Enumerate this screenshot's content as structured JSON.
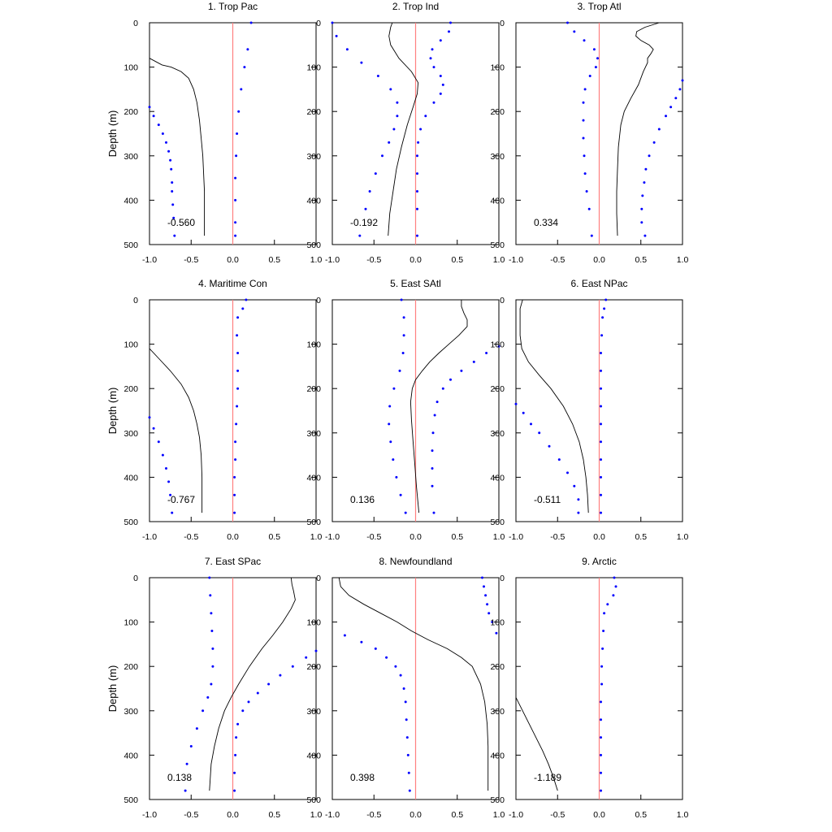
{
  "figure": {
    "y_axis_label": "Depth (m)",
    "ref_color": "#ff8080",
    "dot_color": "#0000ff",
    "line_color": "#000000"
  },
  "chart_data": [
    {
      "type": "line",
      "title": "1. Trop Pac",
      "annotation": "-0.560",
      "xlim": [
        -1,
        1
      ],
      "ylim": [
        500,
        0
      ],
      "xticks": [
        "-1.0",
        "-0.5",
        "0.0",
        "0.5",
        "1.0"
      ],
      "yticks": [
        "0",
        "100",
        "200",
        "300",
        "400",
        "500"
      ],
      "series": [
        {
          "style": "solid",
          "depth": [
            80,
            95,
            100,
            110,
            125,
            150,
            180,
            220,
            260,
            300,
            340,
            380,
            420,
            460,
            480
          ],
          "values": [
            -1.0,
            -0.85,
            -0.74,
            -0.62,
            -0.53,
            -0.47,
            -0.43,
            -0.4,
            -0.38,
            -0.36,
            -0.35,
            -0.34,
            -0.34,
            -0.34,
            -0.34
          ]
        },
        {
          "style": "dotted",
          "depth": [
            0,
            60,
            100,
            150,
            200,
            250,
            300,
            350,
            400,
            450,
            480
          ],
          "values": [
            0.22,
            0.18,
            0.14,
            0.1,
            0.07,
            0.05,
            0.04,
            0.03,
            0.03,
            0.03,
            0.03
          ]
        },
        {
          "style": "dotted",
          "depth": [
            190,
            210,
            230,
            250,
            270,
            290,
            310,
            330,
            360,
            380,
            410,
            440,
            480
          ],
          "values": [
            -1.0,
            -0.95,
            -0.89,
            -0.84,
            -0.8,
            -0.77,
            -0.75,
            -0.74,
            -0.73,
            -0.73,
            -0.72,
            -0.71,
            -0.7
          ]
        }
      ]
    },
    {
      "type": "line",
      "title": "2. Trop Ind",
      "annotation": "-0.192",
      "xlim": [
        -1,
        1
      ],
      "ylim": [
        500,
        0
      ],
      "xticks": [
        "-1.0",
        "-0.5",
        "0.0",
        "0.5",
        "1.0"
      ],
      "yticks": [
        "0",
        "100",
        "200",
        "300",
        "400",
        "500"
      ],
      "series": [
        {
          "style": "solid",
          "depth": [
            0,
            10,
            30,
            50,
            80,
            110,
            135,
            160,
            190,
            230,
            280,
            330,
            380,
            430,
            480
          ],
          "values": [
            -0.28,
            -0.3,
            -0.32,
            -0.3,
            -0.2,
            -0.05,
            0.03,
            0.02,
            -0.03,
            -0.1,
            -0.17,
            -0.23,
            -0.27,
            -0.31,
            -0.33
          ]
        },
        {
          "style": "dotted",
          "depth": [
            0,
            30,
            60,
            90,
            120,
            150,
            180,
            210,
            240,
            270,
            300,
            340,
            380,
            420,
            480
          ],
          "values": [
            -1.0,
            -0.95,
            -0.82,
            -0.65,
            -0.45,
            -0.3,
            -0.22,
            -0.22,
            -0.26,
            -0.32,
            -0.4,
            -0.48,
            -0.55,
            -0.6,
            -0.67
          ]
        },
        {
          "style": "dotted",
          "depth": [
            0,
            20,
            40,
            60,
            80,
            100,
            120,
            140,
            160,
            180,
            210,
            240,
            270,
            300,
            340,
            380,
            420,
            480
          ],
          "values": [
            0.42,
            0.4,
            0.3,
            0.2,
            0.18,
            0.22,
            0.3,
            0.33,
            0.3,
            0.22,
            0.12,
            0.06,
            0.03,
            0.02,
            0.02,
            0.02,
            0.02,
            0.02
          ]
        }
      ]
    },
    {
      "type": "line",
      "title": "3. Trop Atl",
      "annotation": "0.334",
      "xlim": [
        -1,
        1
      ],
      "ylim": [
        500,
        0
      ],
      "xticks": [
        "-1.0",
        "-0.5",
        "0.0",
        "0.5",
        "1.0"
      ],
      "yticks": [
        "0",
        "100",
        "200",
        "300",
        "400",
        "500"
      ],
      "series": [
        {
          "style": "solid",
          "depth": [
            0,
            10,
            20,
            30,
            40,
            50,
            60,
            70,
            80,
            90,
            110,
            140,
            170,
            200,
            230,
            280,
            330,
            380,
            430,
            480
          ],
          "values": [
            0.72,
            0.55,
            0.45,
            0.44,
            0.5,
            0.6,
            0.65,
            0.62,
            0.58,
            0.58,
            0.53,
            0.47,
            0.38,
            0.3,
            0.26,
            0.23,
            0.22,
            0.21,
            0.21,
            0.22
          ]
        },
        {
          "style": "dotted",
          "depth": [
            0,
            20,
            40,
            60,
            80,
            100,
            120,
            150,
            180,
            220,
            260,
            300,
            340,
            380,
            420,
            480
          ],
          "values": [
            -0.38,
            -0.3,
            -0.18,
            -0.06,
            -0.02,
            -0.04,
            -0.11,
            -0.17,
            -0.19,
            -0.19,
            -0.19,
            -0.18,
            -0.17,
            -0.15,
            -0.12,
            -0.09
          ]
        },
        {
          "style": "dotted",
          "depth": [
            130,
            150,
            170,
            190,
            210,
            240,
            270,
            300,
            330,
            360,
            390,
            420,
            450,
            480
          ],
          "values": [
            1.0,
            0.97,
            0.92,
            0.86,
            0.8,
            0.72,
            0.66,
            0.6,
            0.56,
            0.54,
            0.52,
            0.51,
            0.51,
            0.55
          ]
        }
      ]
    },
    {
      "type": "line",
      "title": "4. Maritime Con",
      "annotation": "-0.767",
      "xlim": [
        -1,
        1
      ],
      "ylim": [
        500,
        0
      ],
      "xticks": [
        "-1.0",
        "-0.5",
        "0.0",
        "0.5",
        "1.0"
      ],
      "yticks": [
        "0",
        "100",
        "200",
        "300",
        "400",
        "500"
      ],
      "series": [
        {
          "style": "solid",
          "depth": [
            110,
            130,
            160,
            190,
            220,
            250,
            280,
            310,
            350,
            400,
            450,
            480
          ],
          "values": [
            -1.0,
            -0.9,
            -0.75,
            -0.62,
            -0.53,
            -0.47,
            -0.43,
            -0.4,
            -0.38,
            -0.37,
            -0.37,
            -0.37
          ]
        },
        {
          "style": "dotted",
          "depth": [
            0,
            20,
            40,
            80,
            120,
            160,
            200,
            240,
            280,
            320,
            360,
            400,
            440,
            480
          ],
          "values": [
            0.16,
            0.12,
            0.06,
            0.05,
            0.06,
            0.06,
            0.06,
            0.05,
            0.04,
            0.03,
            0.03,
            0.02,
            0.02,
            0.02
          ]
        },
        {
          "style": "dotted",
          "depth": [
            265,
            290,
            320,
            350,
            380,
            410,
            440,
            480
          ],
          "values": [
            -1.0,
            -0.95,
            -0.89,
            -0.84,
            -0.8,
            -0.77,
            -0.75,
            -0.73
          ]
        }
      ]
    },
    {
      "type": "line",
      "title": "5. East SAtl",
      "annotation": "0.136",
      "xlim": [
        -1,
        1
      ],
      "ylim": [
        500,
        0
      ],
      "xticks": [
        "-1.0",
        "-0.5",
        "0.0",
        "0.5",
        "1.0"
      ],
      "yticks": [
        "0",
        "100",
        "200",
        "300",
        "400",
        "500"
      ],
      "series": [
        {
          "style": "solid",
          "depth": [
            0,
            15,
            30,
            45,
            60,
            80,
            100,
            120,
            140,
            160,
            180,
            200,
            230,
            270,
            320,
            370,
            420,
            480
          ],
          "values": [
            0.55,
            0.55,
            0.58,
            0.62,
            0.62,
            0.52,
            0.4,
            0.28,
            0.17,
            0.08,
            0.0,
            -0.04,
            -0.06,
            -0.05,
            -0.03,
            -0.01,
            0.01,
            0.04
          ]
        },
        {
          "style": "dotted",
          "depth": [
            0,
            40,
            80,
            120,
            160,
            200,
            240,
            280,
            320,
            360,
            400,
            440,
            480
          ],
          "values": [
            -0.17,
            -0.14,
            -0.14,
            -0.15,
            -0.19,
            -0.26,
            -0.31,
            -0.32,
            -0.3,
            -0.27,
            -0.23,
            -0.18,
            -0.12
          ]
        },
        {
          "style": "dotted",
          "depth": [
            105,
            120,
            140,
            160,
            180,
            200,
            230,
            260,
            300,
            340,
            380,
            420,
            480
          ],
          "values": [
            1.0,
            0.85,
            0.7,
            0.55,
            0.42,
            0.33,
            0.26,
            0.23,
            0.21,
            0.2,
            0.2,
            0.2,
            0.22
          ]
        }
      ]
    },
    {
      "type": "line",
      "title": "6. East NPac",
      "annotation": "-0.511",
      "xlim": [
        -1,
        1
      ],
      "ylim": [
        500,
        0
      ],
      "xticks": [
        "-1.0",
        "-0.5",
        "0.0",
        "0.5",
        "1.0"
      ],
      "yticks": [
        "0",
        "100",
        "200",
        "300",
        "400",
        "500"
      ],
      "series": [
        {
          "style": "solid",
          "depth": [
            0,
            20,
            50,
            80,
            110,
            140,
            170,
            200,
            240,
            280,
            320,
            360,
            400,
            440,
            480
          ],
          "values": [
            -0.92,
            -0.95,
            -0.95,
            -0.95,
            -0.93,
            -0.85,
            -0.72,
            -0.58,
            -0.43,
            -0.32,
            -0.24,
            -0.19,
            -0.16,
            -0.14,
            -0.13
          ]
        },
        {
          "style": "dotted",
          "depth": [
            0,
            20,
            40,
            80,
            120,
            160,
            200,
            240,
            280,
            320,
            360,
            400,
            440,
            480
          ],
          "values": [
            0.08,
            0.06,
            0.04,
            0.03,
            0.02,
            0.02,
            0.02,
            0.02,
            0.02,
            0.02,
            0.02,
            0.02,
            0.02,
            0.02
          ]
        },
        {
          "style": "dotted",
          "depth": [
            235,
            255,
            280,
            300,
            330,
            360,
            390,
            420,
            450,
            480
          ],
          "values": [
            -1.0,
            -0.91,
            -0.82,
            -0.72,
            -0.6,
            -0.48,
            -0.38,
            -0.3,
            -0.25,
            -0.25
          ]
        }
      ]
    },
    {
      "type": "line",
      "title": "7. East SPac",
      "annotation": "0.138",
      "xlim": [
        -1,
        1
      ],
      "ylim": [
        500,
        0
      ],
      "xticks": [
        "-1.0",
        "-0.5",
        "0.0",
        "0.5",
        "1.0"
      ],
      "yticks": [
        "0",
        "100",
        "200",
        "300",
        "400",
        "500"
      ],
      "series": [
        {
          "style": "solid",
          "depth": [
            0,
            15,
            30,
            50,
            70,
            100,
            130,
            160,
            200,
            240,
            270,
            300,
            340,
            380,
            420,
            480
          ],
          "values": [
            0.7,
            0.71,
            0.73,
            0.75,
            0.7,
            0.6,
            0.48,
            0.35,
            0.2,
            0.07,
            -0.02,
            -0.1,
            -0.17,
            -0.22,
            -0.26,
            -0.28
          ]
        },
        {
          "style": "dotted",
          "depth": [
            0,
            40,
            80,
            120,
            160,
            200,
            240,
            270,
            300,
            340,
            380,
            420,
            480
          ],
          "values": [
            -0.28,
            -0.27,
            -0.26,
            -0.25,
            -0.24,
            -0.24,
            -0.26,
            -0.3,
            -0.36,
            -0.43,
            -0.5,
            -0.55,
            -0.57
          ]
        },
        {
          "style": "dotted",
          "depth": [
            165,
            180,
            200,
            220,
            240,
            260,
            280,
            300,
            330,
            360,
            400,
            440,
            480
          ],
          "values": [
            1.0,
            0.88,
            0.72,
            0.57,
            0.43,
            0.3,
            0.19,
            0.12,
            0.06,
            0.04,
            0.03,
            0.02,
            0.02
          ]
        }
      ]
    },
    {
      "type": "line",
      "title": "8. Newfoundland",
      "annotation": "0.398",
      "xlim": [
        -1,
        1
      ],
      "ylim": [
        500,
        0
      ],
      "xticks": [
        "-1.0",
        "-0.5",
        "0.0",
        "0.5",
        "1.0"
      ],
      "yticks": [
        "0",
        "100",
        "200",
        "300",
        "400",
        "500"
      ],
      "series": [
        {
          "style": "solid",
          "depth": [
            0,
            20,
            40,
            60,
            80,
            100,
            120,
            140,
            160,
            180,
            200,
            240,
            280,
            330,
            380,
            430,
            480
          ],
          "values": [
            -0.92,
            -0.9,
            -0.8,
            -0.62,
            -0.42,
            -0.22,
            -0.05,
            0.15,
            0.38,
            0.55,
            0.68,
            0.78,
            0.83,
            0.86,
            0.87,
            0.87,
            0.87
          ]
        },
        {
          "style": "dotted",
          "depth": [
            130,
            145,
            160,
            180,
            200,
            220,
            250,
            280,
            320,
            360,
            400,
            440,
            480
          ],
          "values": [
            -0.85,
            -0.65,
            -0.48,
            -0.35,
            -0.24,
            -0.18,
            -0.14,
            -0.12,
            -0.11,
            -0.1,
            -0.09,
            -0.08,
            -0.07
          ]
        },
        {
          "style": "dotted",
          "depth": [
            0,
            20,
            40,
            60,
            80,
            100,
            125
          ],
          "values": [
            0.8,
            0.82,
            0.84,
            0.86,
            0.88,
            0.92,
            0.97
          ]
        }
      ]
    },
    {
      "type": "line",
      "title": "9. Arctic",
      "annotation": "-1.189",
      "xlim": [
        -1,
        1
      ],
      "ylim": [
        500,
        0
      ],
      "xticks": [
        "-1.0",
        "-0.5",
        "0.0",
        "0.5",
        "1.0"
      ],
      "yticks": [
        "0",
        "100",
        "200",
        "300",
        "400",
        "500"
      ],
      "series": [
        {
          "style": "solid",
          "depth": [
            270,
            300,
            330,
            360,
            390,
            420,
            450,
            480
          ],
          "values": [
            -1.0,
            -0.92,
            -0.84,
            -0.76,
            -0.68,
            -0.61,
            -0.55,
            -0.5
          ]
        },
        {
          "style": "dotted",
          "depth": [
            0,
            20,
            40,
            60,
            80,
            120,
            160,
            200,
            240,
            280,
            320,
            360,
            400,
            440,
            480
          ],
          "values": [
            0.18,
            0.2,
            0.17,
            0.1,
            0.06,
            0.05,
            0.04,
            0.03,
            0.03,
            0.02,
            0.02,
            0.02,
            0.02,
            0.02,
            0.02
          ]
        }
      ]
    }
  ]
}
